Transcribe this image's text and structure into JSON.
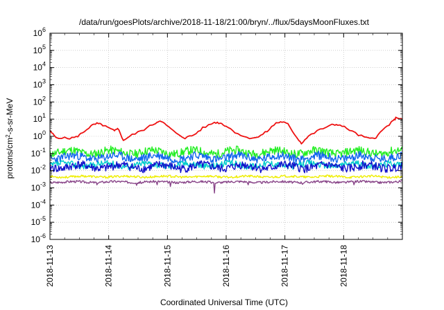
{
  "chart_data": {
    "type": "line",
    "title": "/data/run/goesPlots/archive/2018-11-18/21:00/bryn/../flux/5daysMoonFluxes.txt",
    "xlabel": "Coordinated Universal Time (UTC)",
    "ylabel": {
      "base": "protons/cm",
      "sup": "2",
      "rest": "-s-sr-MeV"
    },
    "y_scale": "log",
    "ylim": [
      1e-06,
      1000000.0
    ],
    "xlim": [
      "2018-11-13 00:00",
      "2018-11-19 00:00"
    ],
    "grid": true,
    "x_ticks": [
      {
        "label": "2018-11-13",
        "day": 0
      },
      {
        "label": "2018-11-14",
        "day": 1
      },
      {
        "label": "2018-11-15",
        "day": 2
      },
      {
        "label": "2018-11-16",
        "day": 3
      },
      {
        "label": "2018-11-17",
        "day": 4
      },
      {
        "label": "2018-11-18",
        "day": 5
      }
    ],
    "y_ticks": [
      {
        "base": "10",
        "exp": "-6",
        "value": 1e-06
      },
      {
        "base": "10",
        "exp": "-5",
        "value": 1e-05
      },
      {
        "base": "10",
        "exp": "-4",
        "value": 0.0001
      },
      {
        "base": "10",
        "exp": "-3",
        "value": 0.001
      },
      {
        "base": "10",
        "exp": "-2",
        "value": 0.01
      },
      {
        "base": "10",
        "exp": "-1",
        "value": 0.1
      },
      {
        "base": "10",
        "exp": "0",
        "value": 1
      },
      {
        "base": "10",
        "exp": "1",
        "value": 10
      },
      {
        "base": "10",
        "exp": "2",
        "value": 100
      },
      {
        "base": "10",
        "exp": "3",
        "value": 1000
      },
      {
        "base": "10",
        "exp": "4",
        "value": 10000
      },
      {
        "base": "10",
        "exp": "5",
        "value": 100000
      },
      {
        "base": "10",
        "exp": "6",
        "value": 1000000
      }
    ],
    "series": [
      {
        "color": "#ee1111",
        "points": [
          [
            0.0,
            2.0
          ],
          [
            0.1,
            0.9
          ],
          [
            0.3,
            0.75
          ],
          [
            0.45,
            0.9
          ],
          [
            0.55,
            1.6
          ],
          [
            0.7,
            4.0
          ],
          [
            0.8,
            5.5
          ],
          [
            0.9,
            4.5
          ],
          [
            1.0,
            3.0
          ],
          [
            1.1,
            2.0
          ],
          [
            1.15,
            3.2
          ],
          [
            1.25,
            0.6
          ],
          [
            1.4,
            1.2
          ],
          [
            1.6,
            2.5
          ],
          [
            1.8,
            6.0
          ],
          [
            1.85,
            8.0
          ],
          [
            1.95,
            5.5
          ],
          [
            2.1,
            2.0
          ],
          [
            2.3,
            0.8
          ],
          [
            2.45,
            1.2
          ],
          [
            2.6,
            3.0
          ],
          [
            2.8,
            6.5
          ],
          [
            2.9,
            6.0
          ],
          [
            3.0,
            4.0
          ],
          [
            3.15,
            1.8
          ],
          [
            3.35,
            0.8
          ],
          [
            3.55,
            0.9
          ],
          [
            3.7,
            2.0
          ],
          [
            3.85,
            6.0
          ],
          [
            3.95,
            7.0
          ],
          [
            4.05,
            5.0
          ],
          [
            4.2,
            0.9
          ],
          [
            4.28,
            0.4
          ],
          [
            4.4,
            1.0
          ],
          [
            4.6,
            2.5
          ],
          [
            4.8,
            4.5
          ],
          [
            4.9,
            5.0
          ],
          [
            5.05,
            3.0
          ],
          [
            5.25,
            1.2
          ],
          [
            5.45,
            0.7
          ],
          [
            5.55,
            0.9
          ],
          [
            5.7,
            3.0
          ],
          [
            5.85,
            8.0
          ],
          [
            5.9,
            13.0
          ],
          [
            6.0,
            9.5
          ]
        ]
      },
      {
        "color": "#22ee22",
        "base": 0.12,
        "spread": 0.45,
        "seed": 11
      },
      {
        "color": "#1166ee",
        "base": 0.06,
        "spread": 0.45,
        "seed": 23
      },
      {
        "color": "#00cccc",
        "base": 0.022,
        "spread": 0.35,
        "seed": 37
      },
      {
        "color": "#1111cc",
        "base": 0.017,
        "spread": 0.45,
        "seed": 41
      },
      {
        "color": "#eeee00",
        "base": 0.0045,
        "spread": 0.12,
        "seed": 53
      },
      {
        "color": "#884488",
        "base": 0.0022,
        "spread": 0.12,
        "seed": 67,
        "spikes": [
          [
            0.8,
            0.0015
          ],
          [
            1.48,
            0.0014
          ],
          [
            1.82,
            0.0015
          ],
          [
            2.05,
            0.0012
          ],
          [
            2.8,
            0.0005
          ],
          [
            3.38,
            0.0015
          ],
          [
            4.3,
            0.0016
          ],
          [
            5.18,
            0.0015
          ]
        ]
      }
    ]
  }
}
